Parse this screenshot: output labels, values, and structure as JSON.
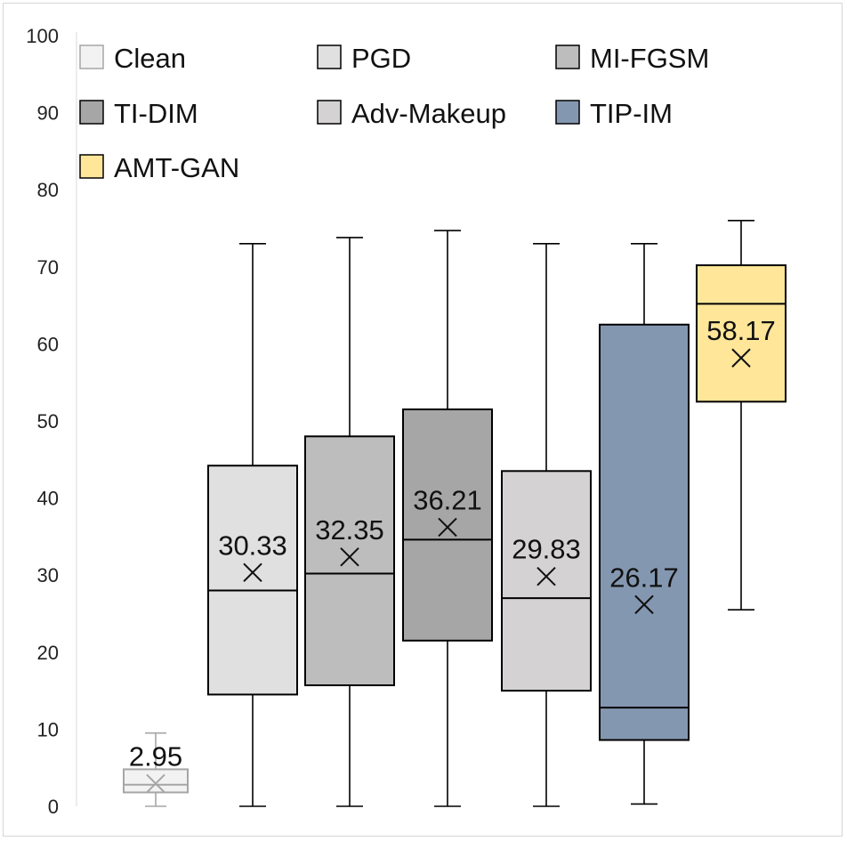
{
  "chart_data": {
    "type": "box",
    "title": "",
    "xlabel": "",
    "ylabel": "",
    "ylim": [
      0,
      100
    ],
    "yticks": [
      "0",
      "10",
      "20",
      "30",
      "40",
      "50",
      "60",
      "70",
      "80",
      "90",
      "100"
    ],
    "grid": false,
    "legend_position": "top",
    "series": [
      {
        "name": "Clean",
        "color": "#F2F2F2",
        "stroke": "#A6A6A6",
        "min": 0,
        "q1": 1.8,
        "median": 2.8,
        "q3": 4.8,
        "max": 9.5,
        "mean": 2.95,
        "mean_label": "2.95"
      },
      {
        "name": "PGD",
        "color": "#E0E0E0",
        "stroke": "#000000",
        "min": 0,
        "q1": 14.5,
        "median": 28.0,
        "q3": 44.2,
        "max": 73.0,
        "mean": 30.33,
        "mean_label": "30.33"
      },
      {
        "name": "MI-FGSM",
        "color": "#BDBDBD",
        "stroke": "#000000",
        "min": 0,
        "q1": 15.7,
        "median": 30.2,
        "q3": 48.0,
        "max": 73.8,
        "mean": 32.35,
        "mean_label": "32.35"
      },
      {
        "name": "TI-DIM",
        "color": "#A6A6A6",
        "stroke": "#000000",
        "min": 0,
        "q1": 21.5,
        "median": 34.6,
        "q3": 51.5,
        "max": 74.7,
        "mean": 36.21,
        "mean_label": "36.21"
      },
      {
        "name": "Adv-Makeup",
        "color": "#D4D2D2",
        "stroke": "#000000",
        "min": 0,
        "q1": 15.0,
        "median": 27.0,
        "q3": 43.5,
        "max": 73.0,
        "mean": 29.83,
        "mean_label": "29.83"
      },
      {
        "name": "TIP-IM",
        "color": "#8497B0",
        "stroke": "#000000",
        "min": 0.3,
        "q1": 8.6,
        "median": 12.8,
        "q3": 62.5,
        "max": 73.0,
        "mean": 26.17,
        "mean_label": "26.17"
      },
      {
        "name": "AMT-GAN",
        "color": "#FFE699",
        "stroke": "#000000",
        "min": 25.5,
        "q1": 52.5,
        "median": 65.2,
        "q3": 70.2,
        "max": 76.0,
        "mean": 58.17,
        "mean_label": "58.17"
      }
    ]
  }
}
